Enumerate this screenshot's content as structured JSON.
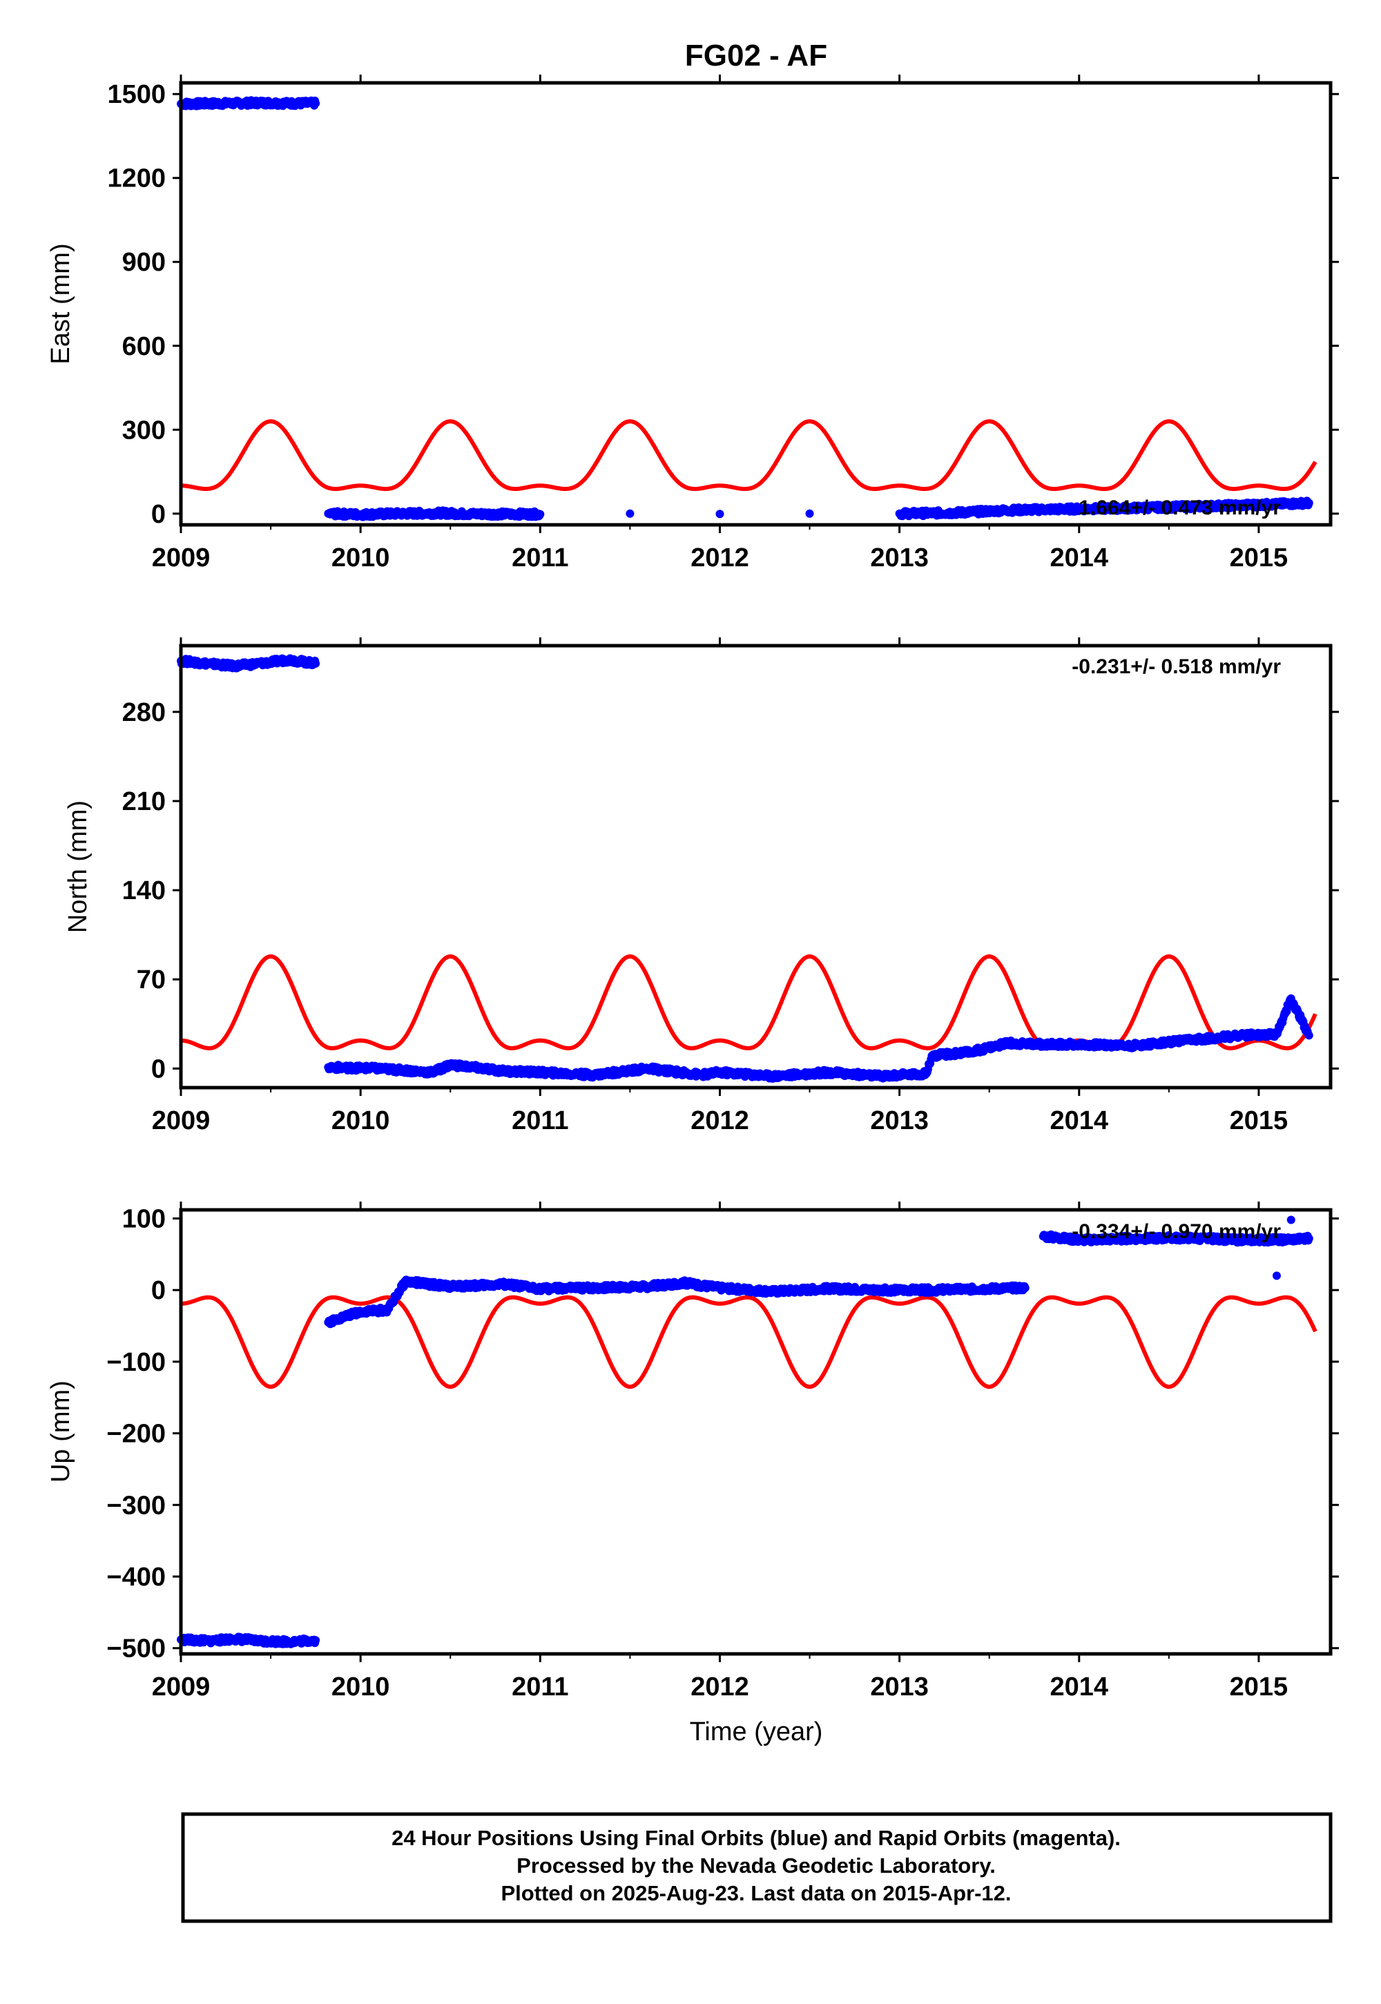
{
  "title": "FG02 - AF",
  "footer": {
    "line1": "24 Hour Positions Using Final Orbits (blue) and Rapid Orbits (magenta).",
    "line2": "Processed by the Nevada Geodetic Laboratory.",
    "line3": "Plotted on 2025-Aug-23. Last data on 2015-Apr-12."
  },
  "colors": {
    "data": "#0000ff",
    "model": "#ff0000",
    "axis": "#000000",
    "background": "#ffffff"
  },
  "chart_data": [
    {
      "type": "scatter",
      "panel": "east",
      "title": "FG02 - AF",
      "ylabel": "East (mm)",
      "xlabel": "",
      "xlim": [
        2009.0,
        2015.4
      ],
      "ylim": [
        -40,
        1540
      ],
      "yticks": [
        0,
        300,
        600,
        900,
        1200,
        1500
      ],
      "xticks": [
        2009,
        2010,
        2011,
        2012,
        2013,
        2014,
        2015
      ],
      "rate_label": "1.664+/- 0.473 mm/yr",
      "series": [
        {
          "values": [
            [
              2009.0,
              1465
            ],
            [
              2009.15,
              1466
            ],
            [
              2009.3,
              1467
            ],
            [
              2009.45,
              1469
            ],
            [
              2009.6,
              1467
            ],
            [
              2009.75,
              1467
            ],
            [
              2009.82,
              0
            ],
            [
              2010.0,
              -3
            ],
            [
              2010.2,
              0
            ],
            [
              2010.45,
              2
            ],
            [
              2010.6,
              -1
            ],
            [
              2011.0,
              -2
            ],
            [
              2011.5,
              0
            ],
            [
              2012.0,
              -1
            ],
            [
              2012.5,
              0
            ],
            [
              2013.0,
              0
            ],
            [
              2013.3,
              3
            ],
            [
              2013.6,
              12
            ],
            [
              2013.8,
              15
            ],
            [
              2014.0,
              17
            ],
            [
              2014.3,
              20
            ],
            [
              2014.6,
              25
            ],
            [
              2014.9,
              30
            ],
            [
              2015.1,
              34
            ],
            [
              2015.28,
              38
            ]
          ]
        }
      ],
      "model": {
        "offset": 170,
        "amp_annual": -115,
        "amp_semiannual": 45,
        "phase_deg": 0
      }
    },
    {
      "type": "scatter",
      "panel": "north",
      "ylabel": "North (mm)",
      "xlabel": "",
      "xlim": [
        2009.0,
        2015.4
      ],
      "ylim": [
        -15,
        332
      ],
      "yticks": [
        0,
        70,
        140,
        210,
        280
      ],
      "xticks": [
        2009,
        2010,
        2011,
        2012,
        2013,
        2014,
        2015
      ],
      "rate_label": "-0.231+/- 0.518 mm/yr",
      "series": [
        {
          "values": [
            [
              2009.0,
              320
            ],
            [
              2009.15,
              318
            ],
            [
              2009.3,
              316
            ],
            [
              2009.5,
              319
            ],
            [
              2009.6,
              321
            ],
            [
              2009.75,
              318
            ],
            [
              2009.82,
              1
            ],
            [
              2010.1,
              0
            ],
            [
              2010.4,
              -3
            ],
            [
              2010.5,
              3
            ],
            [
              2010.8,
              -2
            ],
            [
              2011.0,
              -3
            ],
            [
              2011.3,
              -5
            ],
            [
              2011.6,
              0
            ],
            [
              2011.9,
              -5
            ],
            [
              2012.0,
              -3
            ],
            [
              2012.3,
              -6
            ],
            [
              2012.6,
              -3
            ],
            [
              2012.9,
              -6
            ],
            [
              2013.15,
              -4
            ],
            [
              2013.18,
              10
            ],
            [
              2013.4,
              13
            ],
            [
              2013.6,
              20
            ],
            [
              2013.8,
              19
            ],
            [
              2014.0,
              19
            ],
            [
              2014.3,
              18
            ],
            [
              2014.6,
              22
            ],
            [
              2014.9,
              26
            ],
            [
              2015.1,
              27
            ],
            [
              2015.18,
              55
            ],
            [
              2015.28,
              26
            ]
          ]
        }
      ],
      "model": {
        "offset": 40,
        "amp_annual": -33,
        "amp_semiannual": 15,
        "phase_deg": 0
      }
    },
    {
      "type": "scatter",
      "panel": "up",
      "ylabel": "Up (mm)",
      "xlabel": "Time (year)",
      "xlim": [
        2009.0,
        2015.4
      ],
      "ylim": [
        -508,
        112
      ],
      "yticks": [
        -500,
        -400,
        -300,
        -200,
        -100,
        0,
        100
      ],
      "xticks": [
        2009,
        2010,
        2011,
        2012,
        2013,
        2014,
        2015
      ],
      "rate_label": "-0.334+/- 0.970 mm/yr",
      "series": [
        {
          "values": [
            [
              2009.0,
              -488
            ],
            [
              2009.15,
              -490
            ],
            [
              2009.3,
              -487
            ],
            [
              2009.45,
              -490
            ],
            [
              2009.6,
              -491
            ],
            [
              2009.75,
              -489
            ],
            [
              2009.82,
              -45
            ],
            [
              2009.9,
              -38
            ],
            [
              2010.0,
              -30
            ],
            [
              2010.15,
              -28
            ],
            [
              2010.25,
              12
            ],
            [
              2010.5,
              5
            ],
            [
              2010.8,
              8
            ],
            [
              2011.0,
              2
            ],
            [
              2011.3,
              3
            ],
            [
              2011.6,
              5
            ],
            [
              2011.8,
              10
            ],
            [
              2012.0,
              3
            ],
            [
              2012.3,
              -2
            ],
            [
              2012.6,
              2
            ],
            [
              2012.9,
              0
            ],
            [
              2013.2,
              0
            ],
            [
              2013.5,
              2
            ],
            [
              2013.7,
              3
            ],
            [
              2013.8,
              75
            ],
            [
              2014.0,
              70
            ],
            [
              2014.3,
              72
            ],
            [
              2014.6,
              73
            ],
            [
              2014.9,
              70
            ],
            [
              2015.1,
              70
            ],
            [
              2015.28,
              72
            ],
            [
              2015.1,
              20
            ],
            [
              2015.18,
              98
            ]
          ]
        }
      ],
      "model": {
        "offset": -52,
        "amp_annual": 58,
        "amp_semiannual": -25,
        "phase_deg": 0
      }
    }
  ]
}
